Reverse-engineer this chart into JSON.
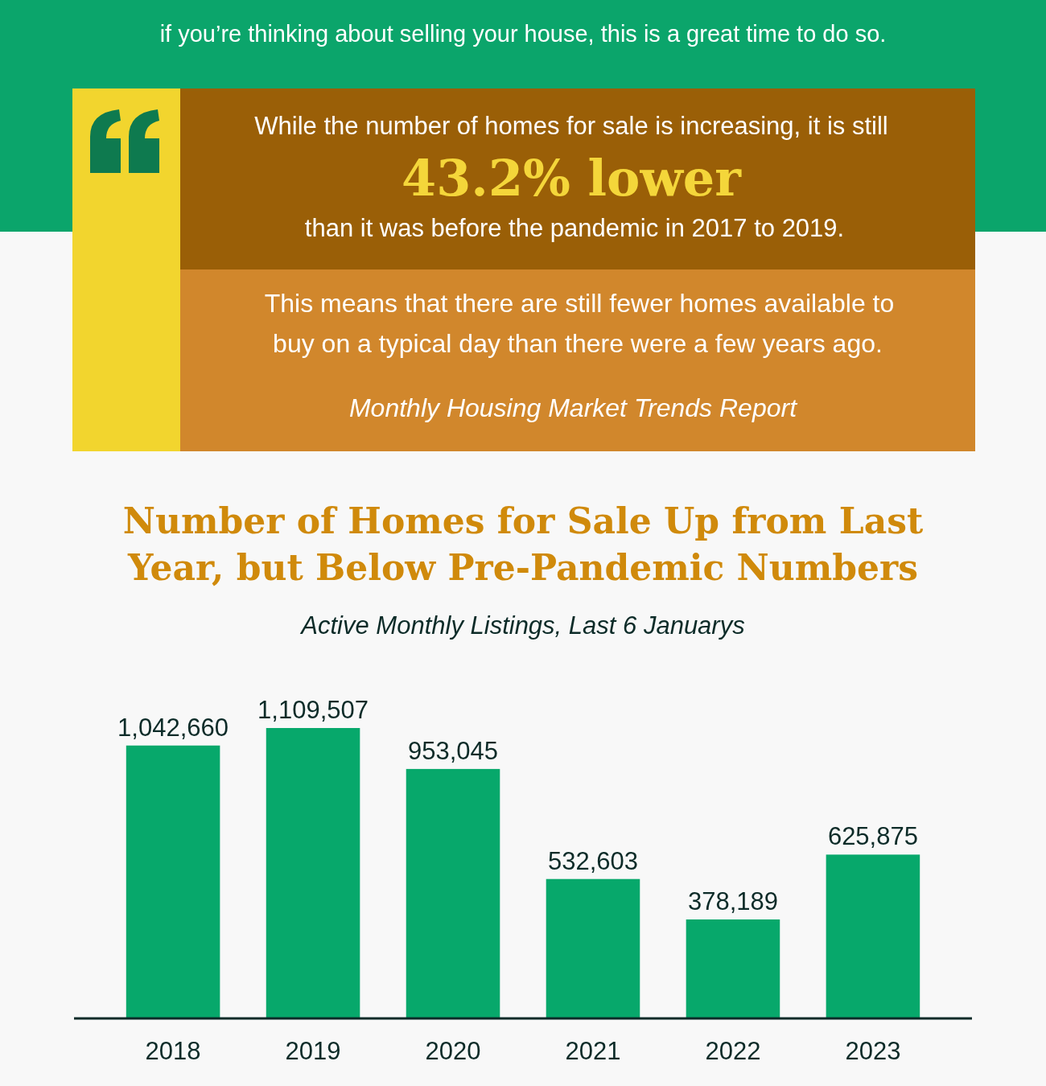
{
  "chart_data": {
    "type": "bar",
    "title": "Number of Homes for Sale Up from Last Year, but Below Pre-Pandemic Numbers",
    "subtitle": "Active Monthly Listings, Last 6 Januarys",
    "categories": [
      "2018",
      "2019",
      "2020",
      "2021",
      "2022",
      "2023"
    ],
    "values": [
      1042660,
      1109507,
      953045,
      532603,
      378189,
      625875
    ],
    "color": "#07a86b",
    "value_labels": [
      "1,042,660",
      "1,109,507",
      "953,045",
      "532,603",
      "378,189",
      "625,875"
    ],
    "annotations": [
      "if you’re thinking about selling your house, this is a great time to do so.",
      "While the number of homes for sale is increasing, it is still",
      "43.2% lower",
      "than it was before the pandemic in 2017 to 2019.",
      "This means that there are still fewer homes available to",
      "buy on a typical day than there were a few years ago.",
      "Monthly Housing Market Trends Report"
    ]
  }
}
